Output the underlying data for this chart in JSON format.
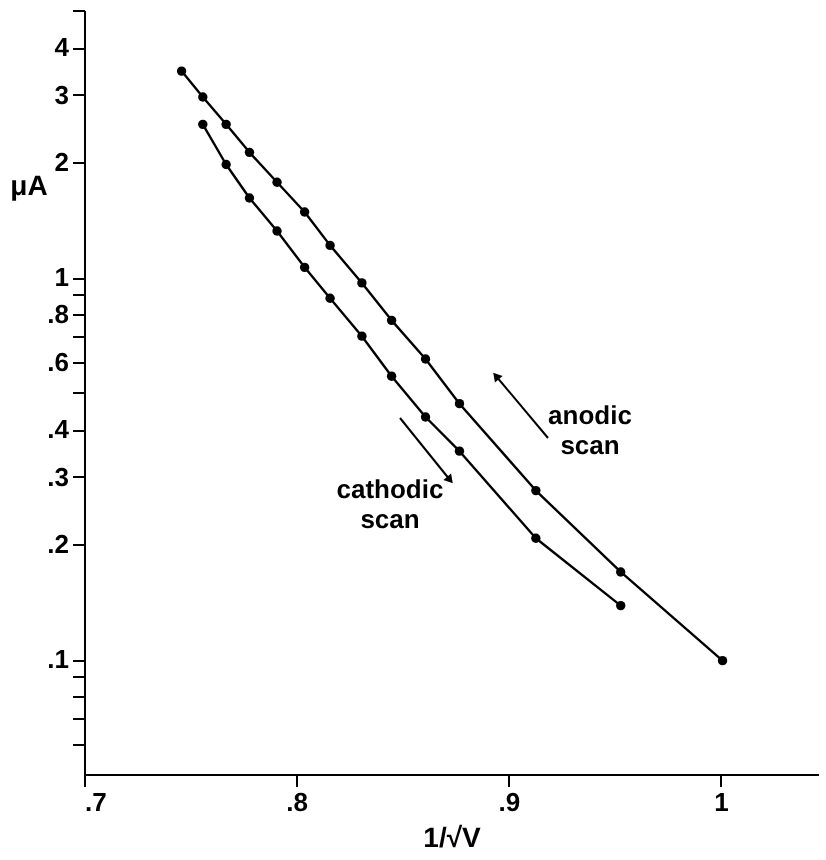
{
  "chart_data": {
    "type": "line",
    "xlabel": "1/√V",
    "ylabel": "μA",
    "series": [
      {
        "color": "#000000",
        "x": [
          0.746,
          0.756,
          0.767,
          0.778,
          0.791,
          0.804,
          0.816,
          0.831,
          0.845,
          0.861,
          0.877,
          0.913,
          0.953,
          1.001
        ],
        "values": [
          3.46,
          2.96,
          2.51,
          2.12,
          1.77,
          1.48,
          1.21,
          0.965,
          0.77,
          0.61,
          0.466,
          0.276,
          0.169,
          0.099
        ]
      },
      {
        "color": "#000000",
        "x": [
          0.756,
          0.767,
          0.778,
          0.791,
          0.804,
          0.816,
          0.831,
          0.845,
          0.861,
          0.877,
          0.913,
          0.953
        ],
        "values": [
          2.51,
          1.97,
          1.61,
          1.32,
          1.06,
          0.88,
          0.7,
          0.55,
          0.43,
          0.35,
          0.207,
          0.138
        ]
      }
    ],
    "annotations": [
      "anodic scan",
      "cathodic scan"
    ],
    "log": "y",
    "grid": false,
    "marker": "circle",
    "line_style": "solid",
    "xlim": [
      0.7,
      1.046
    ],
    "ylim": [
      0.05,
      5
    ],
    "xticks": [
      {
        "value": 0.7,
        "label": ".7"
      },
      {
        "value": 0.8,
        "label": ".8"
      },
      {
        "value": 0.9,
        "label": ".9"
      },
      1
    ],
    "yticks": [
      {
        "value": 0.06,
        "label": null
      },
      {
        "value": 0.07,
        "label": null
      },
      {
        "value": 0.08,
        "label": null
      },
      {
        "value": 0.09,
        "label": null
      },
      {
        "value": 0.1,
        "label": ".1"
      },
      {
        "value": 0.2,
        "label": ".2"
      },
      {
        "value": 0.3,
        "label": ".3"
      },
      {
        "value": 0.4,
        "label": ".4"
      },
      {
        "value": 0.5,
        "label": null
      },
      {
        "value": 0.6,
        "label": ".6"
      },
      {
        "value": 0.7,
        "label": null
      },
      {
        "value": 0.8,
        "label": ".8"
      },
      {
        "value": 0.9,
        "label": null
      },
      1,
      2,
      3,
      4,
      {
        "value": 5,
        "label": null
      }
    ]
  }
}
